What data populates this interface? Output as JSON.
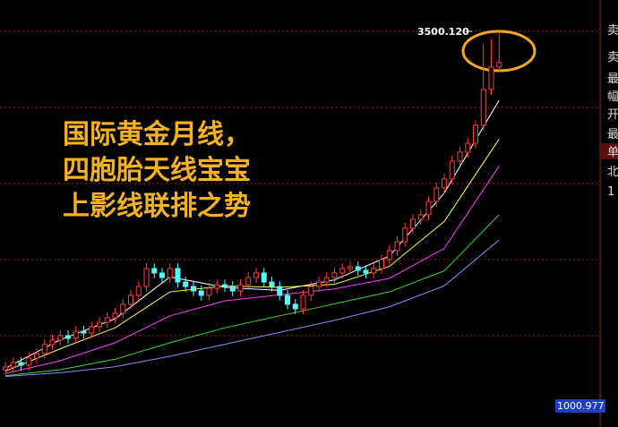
{
  "chart_data": {
    "type": "candlestick",
    "ylim": [
      1000.977,
      3500.12
    ],
    "yticks": [
      1000.977
    ],
    "up_color": "#ff3c3c",
    "down_color": "#54fcfc",
    "open": [
      1240,
      1258,
      1288,
      1270,
      1318,
      1348,
      1408,
      1438,
      1468,
      1450,
      1497,
      1485,
      1527,
      1557,
      1587,
      1617,
      1677,
      1737,
      1796,
      1916,
      1886,
      1856,
      1916,
      1826,
      1796,
      1766,
      1737,
      1784,
      1808,
      1796,
      1766,
      1808,
      1856,
      1886,
      1826,
      1796,
      1737,
      1677,
      1647,
      1737,
      1796,
      1826,
      1856,
      1886,
      1916,
      1928,
      1904,
      1886,
      1916,
      1976,
      2036,
      2095,
      2185,
      2245,
      2275,
      2364,
      2454,
      2514,
      2634,
      2693,
      2753,
      2873,
      3112,
      3262
    ],
    "high": [
      1293,
      1323,
      1323,
      1353,
      1383,
      1443,
      1473,
      1503,
      1503,
      1532,
      1532,
      1562,
      1592,
      1622,
      1652,
      1712,
      1772,
      1831,
      1951,
      1951,
      1921,
      1951,
      1951,
      1861,
      1831,
      1801,
      1819,
      1843,
      1843,
      1831,
      1843,
      1891,
      1921,
      1921,
      1861,
      1831,
      1772,
      1712,
      1772,
      1831,
      1861,
      1891,
      1921,
      1951,
      1963,
      1963,
      1939,
      1951,
      2011,
      2071,
      2130,
      2220,
      2280,
      2310,
      2399,
      2489,
      2549,
      2669,
      2728,
      2788,
      2908,
      3420,
      3450,
      3500.12
    ],
    "low": [
      1205,
      1223,
      1235,
      1235,
      1283,
      1313,
      1373,
      1403,
      1415,
      1415,
      1450,
      1450,
      1492,
      1522,
      1552,
      1582,
      1642,
      1702,
      1761,
      1851,
      1821,
      1821,
      1791,
      1761,
      1731,
      1702,
      1702,
      1749,
      1761,
      1731,
      1731,
      1773,
      1821,
      1791,
      1761,
      1702,
      1642,
      1612,
      1612,
      1702,
      1761,
      1791,
      1821,
      1851,
      1881,
      1869,
      1851,
      1851,
      1881,
      1941,
      2001,
      2060,
      2150,
      2210,
      2240,
      2329,
      2419,
      2479,
      2599,
      2658,
      2718,
      2838,
      3077,
      3227
    ],
    "close": [
      1258,
      1288,
      1270,
      1318,
      1348,
      1408,
      1438,
      1468,
      1450,
      1497,
      1485,
      1527,
      1557,
      1587,
      1617,
      1677,
      1737,
      1796,
      1916,
      1886,
      1856,
      1916,
      1826,
      1796,
      1766,
      1737,
      1784,
      1808,
      1796,
      1766,
      1808,
      1856,
      1886,
      1826,
      1796,
      1737,
      1677,
      1647,
      1737,
      1796,
      1826,
      1856,
      1886,
      1916,
      1928,
      1904,
      1886,
      1916,
      1976,
      2036,
      2095,
      2185,
      2245,
      2275,
      2364,
      2454,
      2514,
      2634,
      2693,
      2753,
      2873,
      3112,
      3262,
      3292
    ],
    "moving_averages": [
      {
        "color": "#ffffff",
        "x": [
          0,
          7,
          14,
          21,
          28,
          35,
          42,
          49,
          56,
          63
        ],
        "values": [
          1250,
          1440,
          1580,
          1860,
          1790,
          1770,
          1840,
          2000,
          2420,
          3040
        ]
      },
      {
        "color": "#ffff3c",
        "x": [
          0,
          7,
          14,
          21,
          28,
          35,
          42,
          49,
          56,
          63
        ],
        "values": [
          1230,
          1380,
          1520,
          1760,
          1800,
          1790,
          1810,
          1930,
          2230,
          2780
        ]
      },
      {
        "color": "#ff3cff",
        "x": [
          0,
          7,
          14,
          21,
          28,
          35,
          42,
          49,
          56,
          63
        ],
        "values": [
          1215,
          1300,
          1420,
          1600,
          1700,
          1740,
          1780,
          1850,
          2050,
          2600
        ]
      },
      {
        "color": "#32dc32",
        "x": [
          0,
          7,
          14,
          21,
          28,
          35,
          42,
          49,
          56,
          63
        ],
        "values": [
          1200,
          1240,
          1310,
          1420,
          1520,
          1600,
          1680,
          1760,
          1900,
          2275
        ]
      },
      {
        "color": "#8c8cff",
        "x": [
          0,
          7,
          14,
          21,
          28,
          35,
          42,
          49,
          56,
          63
        ],
        "values": [
          1195,
          1220,
          1260,
          1330,
          1410,
          1490,
          1570,
          1660,
          1800,
          2107
        ]
      }
    ],
    "max_marker": {
      "value": 3500.12,
      "label": "3500.120"
    },
    "annotation": [
      "国际黄金月线，",
      "四胞胎天线宝宝",
      "上影线联排之势"
    ]
  },
  "side_panel": [
    "卖",
    "卖",
    "最",
    "幅",
    "开",
    "最",
    "单",
    "北",
    "1"
  ]
}
